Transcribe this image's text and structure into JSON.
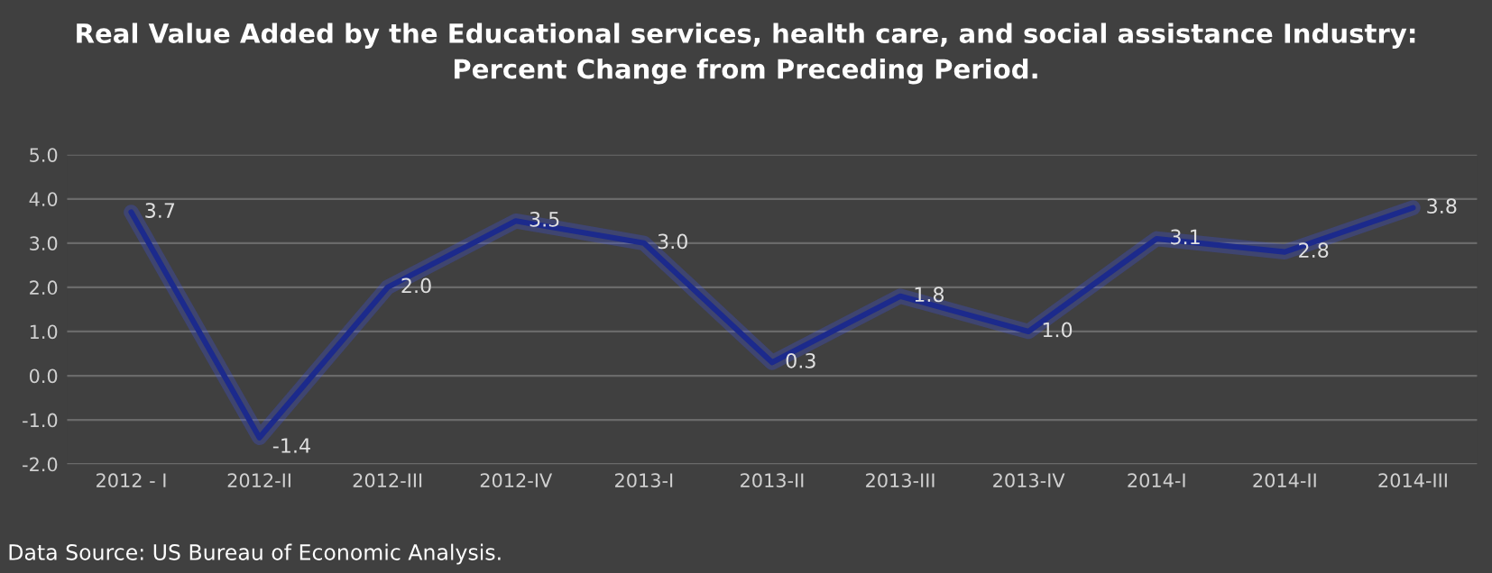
{
  "chart_data": {
    "type": "line",
    "title": "Real Value Added by the Educational services, health care, and social assistance Industry:\nPercent Change from Preceding Period.",
    "categories": [
      "2012 - I",
      "2012-II",
      "2012-III",
      "2012-IV",
      "2013-I",
      "2013-II",
      "2013-III",
      "2013-IV",
      "2014-I",
      "2014-II",
      "2014-III"
    ],
    "series": [
      {
        "color": "#1c2a8c",
        "values": [
          3.7,
          -1.4,
          2.0,
          3.5,
          3.0,
          0.3,
          1.8,
          1.0,
          3.1,
          2.8,
          3.8
        ],
        "value_labels": [
          "3.7",
          "-1.4",
          "2.0",
          "3.5",
          "3.0",
          "0.3",
          "1.8",
          "1.0",
          "3.1",
          "2.8",
          "3.8"
        ]
      }
    ],
    "ylim": [
      -2.0,
      5.0
    ],
    "yticks": [
      {
        "value": -2.0,
        "label": "-2.0"
      },
      {
        "value": -1.0,
        "label": "-1.0"
      },
      {
        "value": 0.0,
        "label": "0.0"
      },
      {
        "value": 1.0,
        "label": "1.0"
      },
      {
        "value": 2.0,
        "label": "2.0"
      },
      {
        "value": 3.0,
        "label": "3.0"
      },
      {
        "value": 4.0,
        "label": "4.0"
      },
      {
        "value": 5.0,
        "label": "5.0"
      }
    ],
    "grid": "y",
    "marker": "none",
    "line_style": "solid",
    "legend": false,
    "annotations": [
      "Data Source: US Bureau of Economic Analysis."
    ]
  }
}
